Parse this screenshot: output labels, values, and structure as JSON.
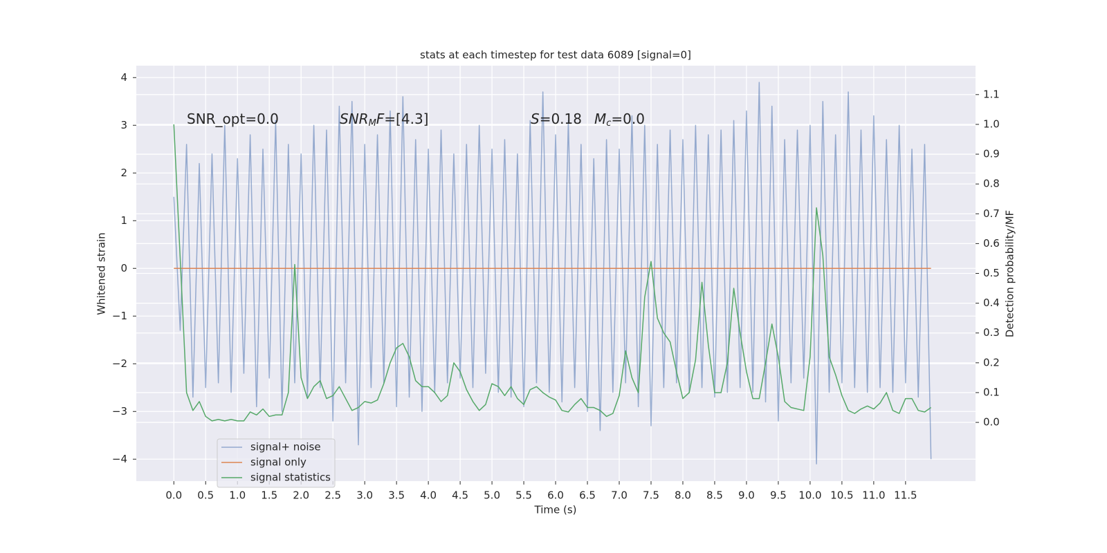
{
  "chart_data": {
    "type": "line",
    "title": "stats at each timestep for test data 6089 [signal=0]",
    "xlabel": "Time (s)",
    "ylabel": "Whitened strain",
    "y2label": "Detection probability/MF",
    "annotations": [
      [
        "SNR_opt=0.0"
      ],
      [
        "SNR",
        "M",
        "F",
        "=[4.3]"
      ],
      [
        "S",
        "=0.18"
      ],
      [
        "M",
        "c",
        "=0.0"
      ]
    ],
    "x": [
      0,
      0.1,
      0.2,
      0.3,
      0.4,
      0.5,
      0.6,
      0.7,
      0.8,
      0.9,
      1,
      1.1,
      1.2,
      1.3,
      1.4,
      1.5,
      1.6,
      1.7,
      1.8,
      1.9,
      2,
      2.1,
      2.2,
      2.3,
      2.4,
      2.5,
      2.6,
      2.7,
      2.8,
      2.9,
      3,
      3.1,
      3.2,
      3.3,
      3.4,
      3.5,
      3.6,
      3.7,
      3.8,
      3.9,
      4,
      4.1,
      4.2,
      4.3,
      4.4,
      4.5,
      4.6,
      4.7,
      4.8,
      4.9,
      5,
      5.1,
      5.2,
      5.3,
      5.4,
      5.5,
      5.6,
      5.7,
      5.8,
      5.9,
      6,
      6.1,
      6.2,
      6.3,
      6.4,
      6.5,
      6.6,
      6.7,
      6.8,
      6.9,
      7,
      7.1,
      7.2,
      7.3,
      7.4,
      7.5,
      7.6,
      7.7,
      7.8,
      7.9,
      8,
      8.1,
      8.2,
      8.3,
      8.4,
      8.5,
      8.6,
      8.7,
      8.8,
      8.9,
      9,
      9.1,
      9.2,
      9.3,
      9.4,
      9.5,
      9.6,
      9.7,
      9.8,
      9.9,
      10,
      10.1,
      10.2,
      10.3,
      10.4,
      10.5,
      10.6,
      10.7,
      10.8,
      10.9,
      11,
      11.1,
      11.2,
      11.3,
      11.4,
      11.5,
      11.6,
      11.7,
      11.8,
      11.9
    ],
    "series": [
      {
        "name": "signal+ noise",
        "color": "#4c72b0",
        "values": [
          1.5,
          -1.3,
          2.6,
          -2.7,
          2.2,
          -2.5,
          2.4,
          -2.4,
          3.0,
          -2.6,
          2.3,
          -2.2,
          2.8,
          -2.9,
          2.5,
          -2.3,
          3.1,
          -3.0,
          2.6,
          -2.4,
          2.4,
          -2.7,
          3.0,
          -2.5,
          2.9,
          -3.2,
          3.4,
          -2.4,
          3.5,
          -3.7,
          2.6,
          -2.5,
          2.8,
          -2.4,
          3.3,
          -2.9,
          3.6,
          -2.7,
          2.7,
          -3.0,
          2.5,
          -2.6,
          2.9,
          -2.4,
          2.4,
          -2.3,
          2.6,
          -2.5,
          3.0,
          -2.2,
          2.5,
          -2.6,
          2.7,
          -2.7,
          2.4,
          -2.9,
          3.1,
          -2.4,
          3.7,
          -2.6,
          2.8,
          -2.8,
          3.1,
          -2.5,
          2.6,
          -3.0,
          2.3,
          -3.4,
          2.7,
          -2.6,
          2.5,
          -2.4,
          3.2,
          -2.9,
          3.0,
          -3.3,
          2.6,
          -2.5,
          2.9,
          -2.4,
          2.7,
          -2.6,
          3.0,
          -2.5,
          2.8,
          -2.7,
          2.9,
          -2.6,
          3.1,
          -2.5,
          3.3,
          -2.6,
          3.9,
          -2.8,
          3.4,
          -3.2,
          2.7,
          -2.4,
          2.9,
          -2.3,
          3.0,
          -4.1,
          3.5,
          -2.6,
          2.8,
          -2.4,
          3.7,
          -2.5,
          2.9,
          -2.6,
          3.2,
          -2.5,
          2.7,
          -2.6,
          3.0,
          -2.4,
          2.5,
          -2.7,
          2.6,
          -4.0
        ]
      },
      {
        "name": "signal only",
        "color": "#dd8452",
        "values": [
          0,
          0,
          0,
          0,
          0,
          0,
          0,
          0,
          0,
          0,
          0,
          0,
          0,
          0,
          0,
          0,
          0,
          0,
          0,
          0,
          0,
          0,
          0,
          0,
          0,
          0,
          0,
          0,
          0,
          0,
          0,
          0,
          0,
          0,
          0,
          0,
          0,
          0,
          0,
          0,
          0,
          0,
          0,
          0,
          0,
          0,
          0,
          0,
          0,
          0,
          0,
          0,
          0,
          0,
          0,
          0,
          0,
          0,
          0,
          0,
          0,
          0,
          0,
          0,
          0,
          0,
          0,
          0,
          0,
          0,
          0,
          0,
          0,
          0,
          0,
          0,
          0,
          0,
          0,
          0,
          0,
          0,
          0,
          0,
          0,
          0,
          0,
          0,
          0,
          0,
          0,
          0,
          0,
          0,
          0,
          0,
          0,
          0,
          0,
          0,
          0,
          0,
          0,
          0,
          0,
          0,
          0,
          0,
          0,
          0,
          0,
          0,
          0,
          0,
          0,
          0,
          0,
          0,
          0,
          0
        ]
      },
      {
        "name": "signal statistics",
        "color": "#55a868",
        "axis": "y2",
        "values": [
          1.0,
          0.55,
          0.1,
          0.04,
          0.07,
          0.02,
          0.005,
          0.01,
          0.005,
          0.01,
          0.005,
          0.005,
          0.035,
          0.025,
          0.045,
          0.02,
          0.025,
          0.025,
          0.1,
          0.53,
          0.15,
          0.08,
          0.12,
          0.14,
          0.08,
          0.09,
          0.12,
          0.08,
          0.04,
          0.05,
          0.07,
          0.065,
          0.075,
          0.13,
          0.2,
          0.25,
          0.265,
          0.22,
          0.14,
          0.12,
          0.12,
          0.1,
          0.07,
          0.09,
          0.2,
          0.17,
          0.11,
          0.07,
          0.04,
          0.06,
          0.13,
          0.12,
          0.09,
          0.12,
          0.08,
          0.06,
          0.11,
          0.12,
          0.1,
          0.085,
          0.075,
          0.04,
          0.035,
          0.06,
          0.08,
          0.05,
          0.05,
          0.04,
          0.02,
          0.03,
          0.09,
          0.24,
          0.15,
          0.1,
          0.42,
          0.54,
          0.35,
          0.3,
          0.27,
          0.17,
          0.08,
          0.1,
          0.21,
          0.47,
          0.26,
          0.1,
          0.1,
          0.2,
          0.45,
          0.3,
          0.17,
          0.08,
          0.08,
          0.2,
          0.33,
          0.22,
          0.07,
          0.05,
          0.045,
          0.04,
          0.22,
          0.72,
          0.56,
          0.22,
          0.16,
          0.09,
          0.04,
          0.03,
          0.045,
          0.055,
          0.045,
          0.065,
          0.1,
          0.04,
          0.03,
          0.08,
          0.08,
          0.04,
          0.035,
          0.05
        ]
      }
    ],
    "xlim": [
      -0.59,
      12.6
    ],
    "xticks": [
      {
        "value": 0,
        "label": "0.0"
      },
      0.5,
      {
        "value": 1,
        "label": "1.0"
      },
      1.5,
      {
        "value": 2,
        "label": "2.0"
      },
      2.5,
      {
        "value": 3,
        "label": "3.0"
      },
      3.5,
      {
        "value": 4,
        "label": "4.0"
      },
      4.5,
      {
        "value": 5,
        "label": "5.0"
      },
      5.5,
      {
        "value": 6,
        "label": "6.0"
      },
      6.5,
      {
        "value": 7,
        "label": "7.0"
      },
      7.5,
      {
        "value": 8,
        "label": "8.0"
      },
      8.5,
      {
        "value": 9,
        "label": "9.0"
      },
      9.5,
      {
        "value": 10,
        "label": "10.0"
      },
      10.5,
      {
        "value": 11,
        "label": "11.0"
      },
      11.5
    ],
    "ylim": [
      -4.46,
      4.25
    ],
    "yticks": [
      {
        "value": -4,
        "label": "−4"
      },
      {
        "value": -3,
        "label": "−3"
      },
      {
        "value": -2,
        "label": "−2"
      },
      {
        "value": -1,
        "label": "−1"
      },
      0,
      1,
      2,
      3,
      4
    ],
    "y2lim": [
      -0.197,
      1.197
    ],
    "y2ticks": [
      {
        "value": 0,
        "label": "0.0"
      },
      0.1,
      0.2,
      0.3,
      0.4,
      0.5,
      0.6,
      0.7,
      0.8,
      0.9,
      {
        "value": 1,
        "label": "1.0"
      },
      1.1
    ],
    "grid": true,
    "legend": "lower left"
  }
}
